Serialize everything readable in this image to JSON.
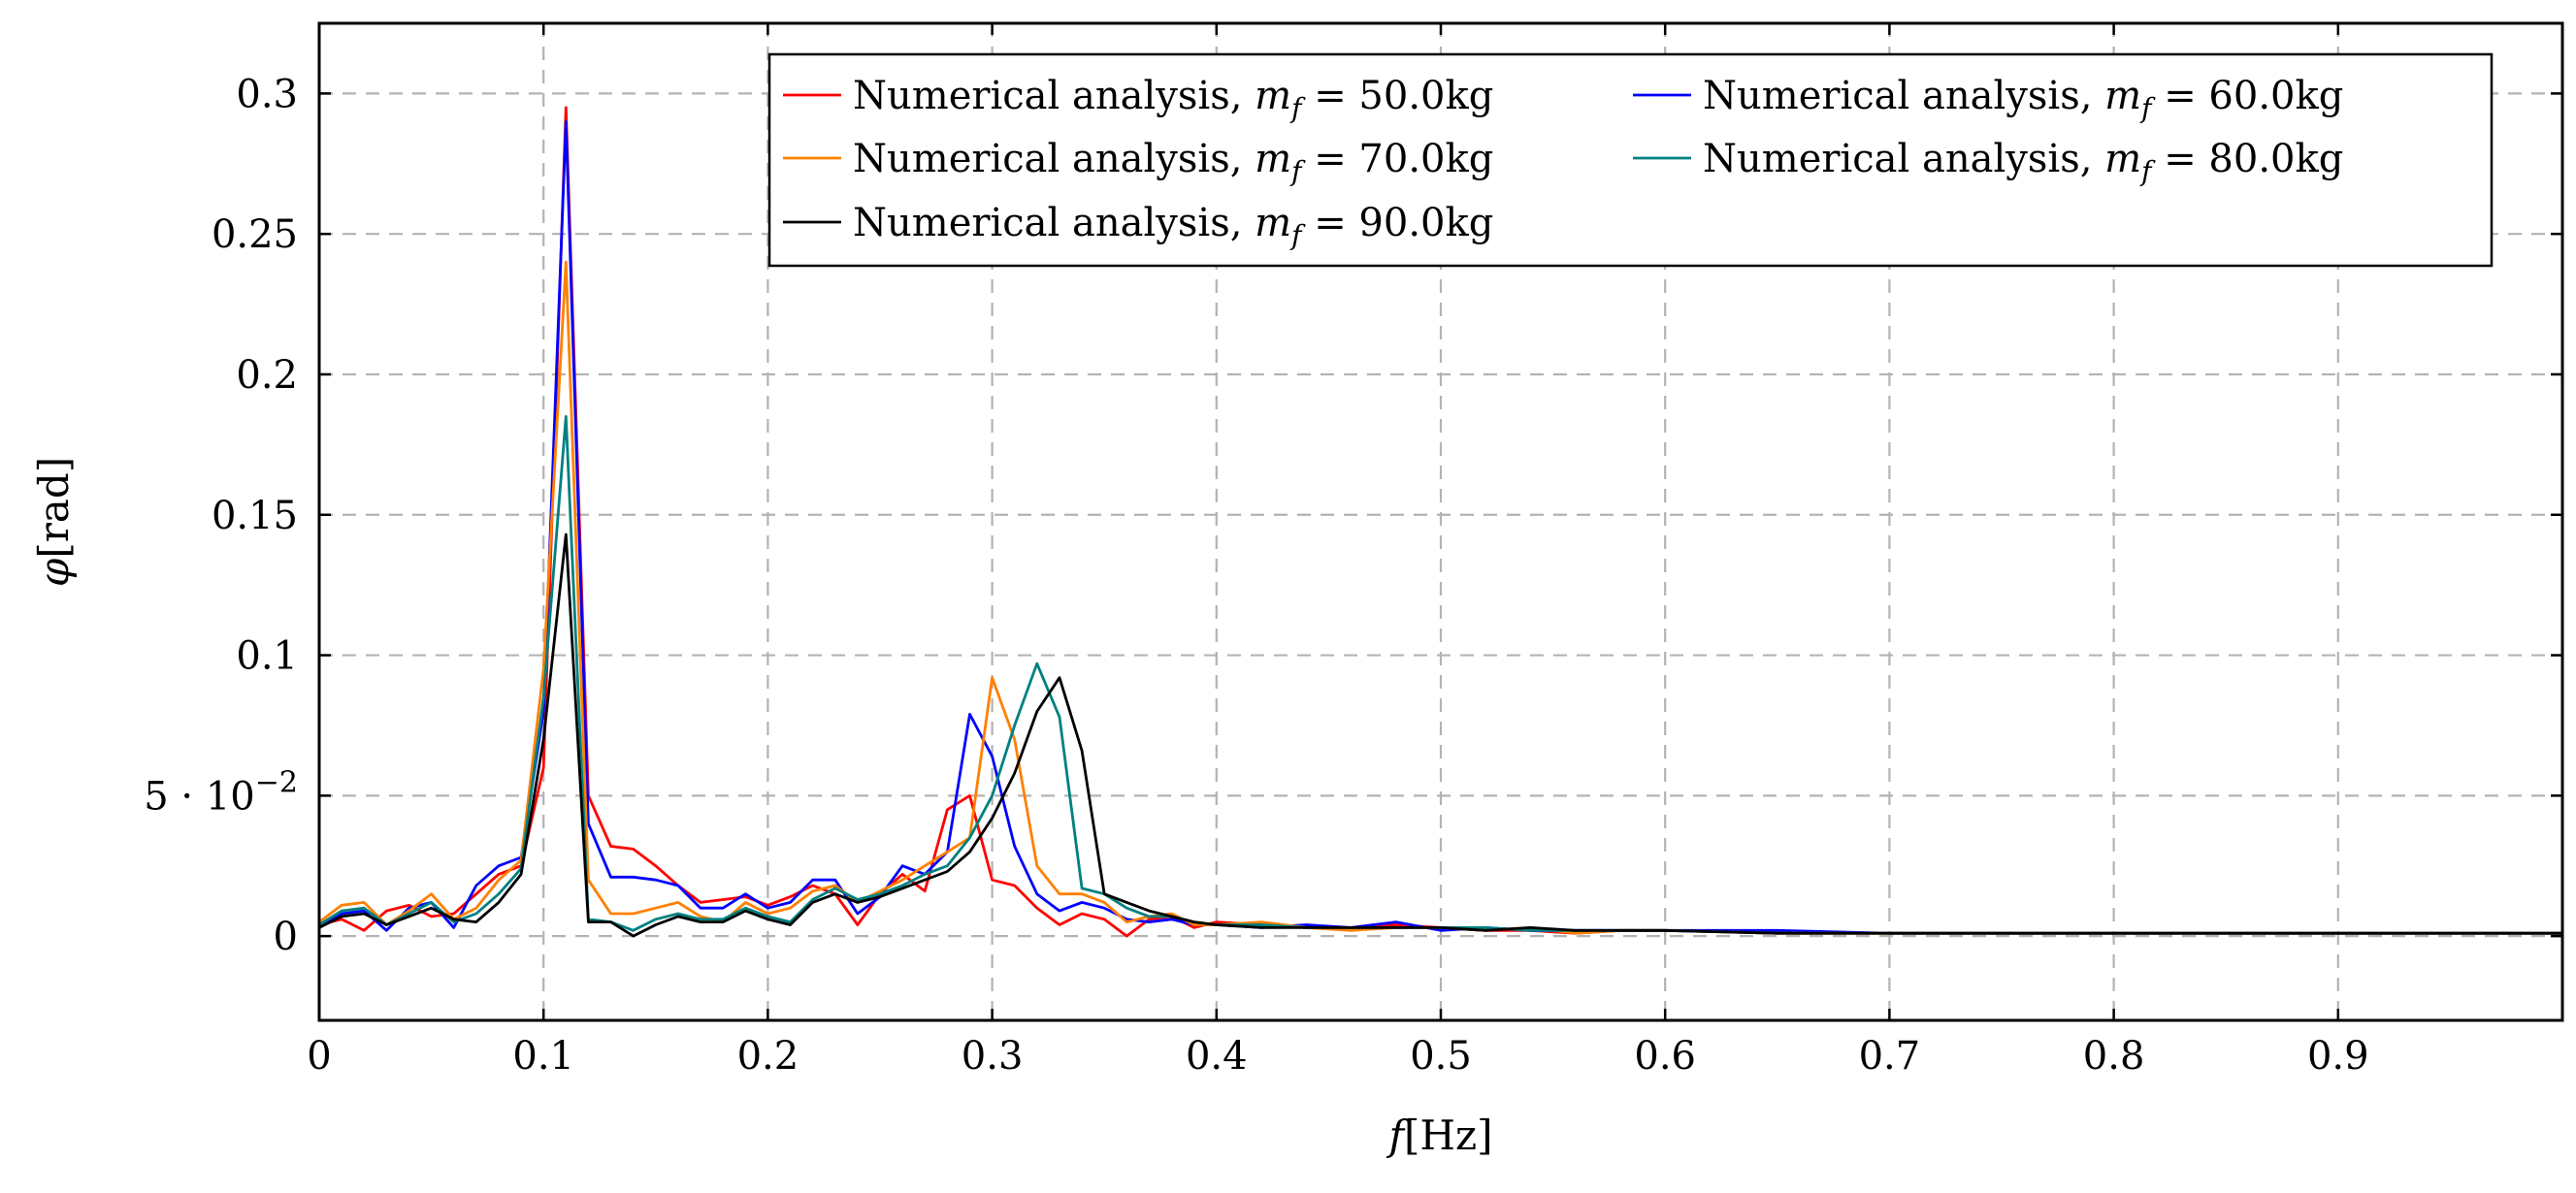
{
  "chart_data": {
    "type": "line",
    "title": "",
    "xlabel_var": "f",
    "xlabel_unit": "[Hz]",
    "ylabel_var": "φ",
    "ylabel_unit": "[rad]",
    "xlim": [
      0,
      1.0
    ],
    "ylim": [
      -0.03,
      0.325
    ],
    "grid": true,
    "legend_position": "top-right",
    "xticks": [
      {
        "value": 0,
        "label": "0"
      },
      {
        "value": 0.1,
        "label": "0.1"
      },
      {
        "value": 0.2,
        "label": "0.2"
      },
      {
        "value": 0.3,
        "label": "0.3"
      },
      {
        "value": 0.4,
        "label": "0.4"
      },
      {
        "value": 0.5,
        "label": "0.5"
      },
      {
        "value": 0.6,
        "label": "0.6"
      },
      {
        "value": 0.7,
        "label": "0.7"
      },
      {
        "value": 0.8,
        "label": "0.8"
      },
      {
        "value": 0.9,
        "label": "0.9"
      }
    ],
    "yticks": [
      {
        "value": 0,
        "label": "0"
      },
      {
        "value": 0.05,
        "label": "5 · 10",
        "exp": "−2"
      },
      {
        "value": 0.1,
        "label": "0.1"
      },
      {
        "value": 0.15,
        "label": "0.15"
      },
      {
        "value": 0.2,
        "label": "0.2"
      },
      {
        "value": 0.25,
        "label": "0.25"
      },
      {
        "value": 0.3,
        "label": "0.3"
      }
    ],
    "series": [
      {
        "name": "Numerical analysis, m_f = 50.0kg",
        "label_prefix": "Numerical analysis, ",
        "label_var": "m",
        "label_sub": "f",
        "label_value": " = 50.0kg",
        "color": "#ff0000",
        "x": [
          0,
          0.01,
          0.02,
          0.03,
          0.04,
          0.05,
          0.06,
          0.07,
          0.08,
          0.09,
          0.1,
          0.11,
          0.12,
          0.13,
          0.14,
          0.15,
          0.16,
          0.17,
          0.18,
          0.19,
          0.2,
          0.21,
          0.22,
          0.23,
          0.24,
          0.25,
          0.26,
          0.27,
          0.28,
          0.29,
          0.3,
          0.31,
          0.32,
          0.33,
          0.34,
          0.35,
          0.36,
          0.37,
          0.38,
          0.39,
          0.4,
          0.42,
          0.44,
          0.46,
          0.48,
          0.5,
          0.52,
          0.54,
          0.56,
          0.58,
          0.6,
          0.65,
          0.7,
          0.75,
          0.8,
          0.85,
          0.9,
          0.95,
          1.0
        ],
        "y": [
          0.004,
          0.006,
          0.002,
          0.009,
          0.011,
          0.007,
          0.008,
          0.015,
          0.022,
          0.025,
          0.06,
          0.295,
          0.05,
          0.032,
          0.031,
          0.025,
          0.018,
          0.012,
          0.013,
          0.014,
          0.011,
          0.014,
          0.018,
          0.015,
          0.004,
          0.015,
          0.022,
          0.016,
          0.045,
          0.05,
          0.02,
          0.018,
          0.01,
          0.004,
          0.008,
          0.006,
          0.0,
          0.006,
          0.007,
          0.003,
          0.005,
          0.004,
          0.003,
          0.003,
          0.004,
          0.003,
          0.002,
          0.002,
          0.001,
          0.002,
          0.002,
          0.001,
          0.001,
          0.001,
          0.001,
          0.001,
          0.001,
          0.001,
          0.001
        ]
      },
      {
        "name": "Numerical analysis, m_f = 60.0kg",
        "label_prefix": "Numerical analysis, ",
        "label_var": "m",
        "label_sub": "f",
        "label_value": " = 60.0kg",
        "color": "#0000ff",
        "x": [
          0,
          0.01,
          0.02,
          0.03,
          0.04,
          0.05,
          0.06,
          0.07,
          0.08,
          0.09,
          0.1,
          0.11,
          0.12,
          0.13,
          0.14,
          0.15,
          0.16,
          0.17,
          0.18,
          0.19,
          0.2,
          0.21,
          0.22,
          0.23,
          0.24,
          0.25,
          0.26,
          0.27,
          0.28,
          0.29,
          0.3,
          0.31,
          0.32,
          0.33,
          0.34,
          0.35,
          0.36,
          0.37,
          0.38,
          0.39,
          0.4,
          0.42,
          0.44,
          0.46,
          0.48,
          0.5,
          0.52,
          0.54,
          0.56,
          0.58,
          0.6,
          0.65,
          0.7,
          0.75,
          0.8,
          0.85,
          0.9,
          0.95,
          1.0
        ],
        "y": [
          0.003,
          0.008,
          0.009,
          0.002,
          0.01,
          0.012,
          0.003,
          0.018,
          0.025,
          0.028,
          0.08,
          0.29,
          0.04,
          0.021,
          0.021,
          0.02,
          0.018,
          0.01,
          0.01,
          0.015,
          0.01,
          0.012,
          0.02,
          0.02,
          0.008,
          0.014,
          0.025,
          0.022,
          0.03,
          0.079,
          0.064,
          0.032,
          0.015,
          0.009,
          0.012,
          0.01,
          0.006,
          0.005,
          0.006,
          0.004,
          0.004,
          0.003,
          0.004,
          0.003,
          0.005,
          0.002,
          0.003,
          0.002,
          0.002,
          0.002,
          0.002,
          0.002,
          0.001,
          0.001,
          0.001,
          0.001,
          0.001,
          0.001,
          0.001
        ]
      },
      {
        "name": "Numerical analysis, m_f = 70.0kg",
        "label_prefix": "Numerical analysis, ",
        "label_var": "m",
        "label_sub": "f",
        "label_value": " = 70.0kg",
        "color": "#ff8000",
        "x": [
          0,
          0.01,
          0.02,
          0.03,
          0.04,
          0.05,
          0.06,
          0.07,
          0.08,
          0.09,
          0.1,
          0.11,
          0.12,
          0.13,
          0.14,
          0.15,
          0.16,
          0.17,
          0.18,
          0.19,
          0.2,
          0.21,
          0.22,
          0.23,
          0.24,
          0.25,
          0.26,
          0.27,
          0.28,
          0.29,
          0.3,
          0.31,
          0.32,
          0.33,
          0.34,
          0.35,
          0.36,
          0.37,
          0.38,
          0.39,
          0.4,
          0.42,
          0.44,
          0.46,
          0.48,
          0.5,
          0.52,
          0.54,
          0.56,
          0.58,
          0.6,
          0.65,
          0.7,
          0.75,
          0.8,
          0.85,
          0.9,
          0.95,
          1.0
        ],
        "y": [
          0.005,
          0.011,
          0.012,
          0.004,
          0.009,
          0.015,
          0.006,
          0.01,
          0.02,
          0.027,
          0.095,
          0.24,
          0.02,
          0.008,
          0.008,
          0.01,
          0.012,
          0.007,
          0.005,
          0.012,
          0.008,
          0.01,
          0.016,
          0.018,
          0.012,
          0.016,
          0.02,
          0.025,
          0.03,
          0.035,
          0.092,
          0.07,
          0.025,
          0.015,
          0.015,
          0.012,
          0.005,
          0.007,
          0.008,
          0.004,
          0.004,
          0.005,
          0.003,
          0.002,
          0.003,
          0.003,
          0.002,
          0.003,
          0.001,
          0.002,
          0.002,
          0.001,
          0.001,
          0.001,
          0.001,
          0.001,
          0.001,
          0.001,
          0.001
        ]
      },
      {
        "name": "Numerical analysis, m_f = 80.0kg",
        "label_prefix": "Numerical analysis, ",
        "label_var": "m",
        "label_sub": "f",
        "label_value": " = 80.0kg",
        "color": "#008080",
        "x": [
          0,
          0.01,
          0.02,
          0.03,
          0.04,
          0.05,
          0.06,
          0.07,
          0.08,
          0.09,
          0.1,
          0.11,
          0.12,
          0.13,
          0.14,
          0.15,
          0.16,
          0.17,
          0.18,
          0.19,
          0.2,
          0.21,
          0.22,
          0.23,
          0.24,
          0.25,
          0.26,
          0.27,
          0.28,
          0.29,
          0.3,
          0.31,
          0.32,
          0.33,
          0.34,
          0.35,
          0.36,
          0.37,
          0.38,
          0.39,
          0.4,
          0.42,
          0.44,
          0.46,
          0.48,
          0.5,
          0.52,
          0.54,
          0.56,
          0.58,
          0.6,
          0.65,
          0.7,
          0.75,
          0.8,
          0.85,
          0.9,
          0.95,
          1.0
        ],
        "y": [
          0.004,
          0.009,
          0.01,
          0.004,
          0.008,
          0.012,
          0.005,
          0.008,
          0.015,
          0.024,
          0.085,
          0.185,
          0.006,
          0.005,
          0.002,
          0.006,
          0.008,
          0.006,
          0.006,
          0.01,
          0.007,
          0.005,
          0.013,
          0.017,
          0.013,
          0.015,
          0.018,
          0.022,
          0.025,
          0.035,
          0.05,
          0.075,
          0.097,
          0.078,
          0.017,
          0.015,
          0.01,
          0.007,
          0.007,
          0.005,
          0.004,
          0.004,
          0.003,
          0.003,
          0.003,
          0.003,
          0.003,
          0.002,
          0.002,
          0.002,
          0.002,
          0.001,
          0.001,
          0.001,
          0.001,
          0.001,
          0.001,
          0.001,
          0.001
        ]
      },
      {
        "name": "Numerical analysis, m_f = 90.0kg",
        "label_prefix": "Numerical analysis, ",
        "label_var": "m",
        "label_sub": "f",
        "label_value": " = 90.0kg",
        "color": "#000000",
        "x": [
          0,
          0.01,
          0.02,
          0.03,
          0.04,
          0.05,
          0.06,
          0.07,
          0.08,
          0.09,
          0.1,
          0.11,
          0.12,
          0.13,
          0.14,
          0.15,
          0.16,
          0.17,
          0.18,
          0.19,
          0.2,
          0.21,
          0.22,
          0.23,
          0.24,
          0.25,
          0.26,
          0.27,
          0.28,
          0.29,
          0.3,
          0.31,
          0.32,
          0.33,
          0.34,
          0.35,
          0.36,
          0.37,
          0.38,
          0.39,
          0.4,
          0.42,
          0.44,
          0.46,
          0.48,
          0.5,
          0.52,
          0.54,
          0.56,
          0.58,
          0.6,
          0.65,
          0.7,
          0.75,
          0.8,
          0.85,
          0.9,
          0.95,
          1.0
        ],
        "y": [
          0.003,
          0.007,
          0.008,
          0.004,
          0.007,
          0.01,
          0.006,
          0.005,
          0.012,
          0.022,
          0.07,
          0.143,
          0.005,
          0.005,
          0.0,
          0.004,
          0.007,
          0.005,
          0.005,
          0.009,
          0.006,
          0.004,
          0.012,
          0.015,
          0.012,
          0.014,
          0.017,
          0.02,
          0.023,
          0.03,
          0.042,
          0.058,
          0.08,
          0.092,
          0.066,
          0.015,
          0.012,
          0.009,
          0.007,
          0.005,
          0.004,
          0.003,
          0.003,
          0.003,
          0.003,
          0.003,
          0.002,
          0.003,
          0.002,
          0.002,
          0.002,
          0.001,
          0.001,
          0.001,
          0.001,
          0.001,
          0.001,
          0.001,
          0.001
        ]
      }
    ]
  }
}
